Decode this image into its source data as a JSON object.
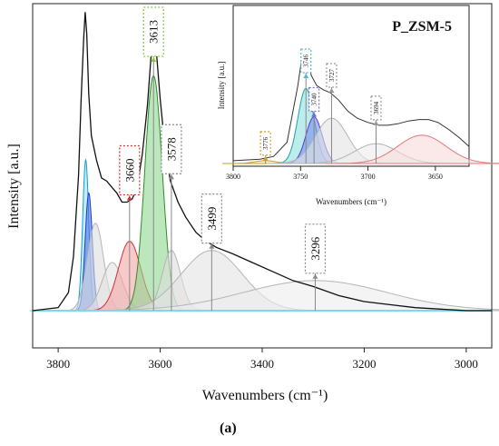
{
  "caption": "(a)",
  "main": {
    "type": "line",
    "xlabel": "Wavenumbers (cm⁻¹)",
    "ylabel": "Intensity [a.u.]",
    "xlim": [
      3850,
      2950
    ],
    "x_reversed": true,
    "xticks": [
      3800,
      3600,
      3400,
      3200,
      3000
    ],
    "grid": false,
    "baseline_color": "#7fd8ea",
    "spectrum": {
      "color": "#111111",
      "points": [
        [
          3850,
          0.0
        ],
        [
          3800,
          0.01
        ],
        [
          3780,
          0.06
        ],
        [
          3770,
          0.18
        ],
        [
          3760,
          0.45
        ],
        [
          3755,
          0.7
        ],
        [
          3750,
          0.9
        ],
        [
          3747,
          0.99
        ],
        [
          3744,
          0.92
        ],
        [
          3740,
          0.72
        ],
        [
          3735,
          0.58
        ],
        [
          3725,
          0.5
        ],
        [
          3715,
          0.44
        ],
        [
          3705,
          0.43
        ],
        [
          3695,
          0.41
        ],
        [
          3685,
          0.39
        ],
        [
          3675,
          0.36
        ],
        [
          3665,
          0.36
        ],
        [
          3655,
          0.37
        ],
        [
          3645,
          0.41
        ],
        [
          3635,
          0.52
        ],
        [
          3625,
          0.68
        ],
        [
          3618,
          0.84
        ],
        [
          3613,
          0.91
        ],
        [
          3607,
          0.85
        ],
        [
          3600,
          0.7
        ],
        [
          3590,
          0.53
        ],
        [
          3580,
          0.43
        ],
        [
          3565,
          0.36
        ],
        [
          3550,
          0.31
        ],
        [
          3530,
          0.26
        ],
        [
          3510,
          0.23
        ],
        [
          3490,
          0.21
        ],
        [
          3460,
          0.19
        ],
        [
          3420,
          0.16
        ],
        [
          3380,
          0.13
        ],
        [
          3340,
          0.1
        ],
        [
          3300,
          0.08
        ],
        [
          3250,
          0.05
        ],
        [
          3200,
          0.03
        ],
        [
          3150,
          0.02
        ],
        [
          3100,
          0.01
        ],
        [
          3000,
          0.0
        ],
        [
          2950,
          0.0
        ]
      ]
    },
    "components": [
      {
        "center": 3746,
        "height": 0.5,
        "width": 6,
        "stroke": "#1a9bd6",
        "fill": "#9adff0"
      },
      {
        "center": 3740,
        "height": 0.39,
        "width": 7,
        "stroke": "#1b3cc8",
        "fill": "#4d74e8"
      },
      {
        "center": 3727,
        "height": 0.29,
        "width": 16,
        "stroke": "#b5b5b5",
        "fill": "#dddddd"
      },
      {
        "center": 3694,
        "height": 0.16,
        "width": 20,
        "stroke": "#b5b5b5",
        "fill": "#e3e3e3"
      },
      {
        "center": 3660,
        "height": 0.23,
        "width": 22,
        "stroke": "#cc3333",
        "fill": "#f3a5a5"
      },
      {
        "center": 3613,
        "height": 0.78,
        "width": 17,
        "stroke": "#2e8b2e",
        "fill": "#8fd68f"
      },
      {
        "center": 3578,
        "height": 0.2,
        "width": 18,
        "stroke": "#b5b5b5",
        "fill": "#dddddd"
      },
      {
        "center": 3499,
        "height": 0.2,
        "width": 60,
        "stroke": "#b5b5b5",
        "fill": "#e3e3e3"
      },
      {
        "center": 3296,
        "height": 0.1,
        "width": 140,
        "stroke": "#b5b5b5",
        "fill": "#ececec"
      }
    ],
    "peak_labels": [
      {
        "text": "3613",
        "x": 3613,
        "y": 0.91,
        "box_color": "#8cc63f"
      },
      {
        "text": "3660",
        "x": 3660,
        "y": 0.36,
        "box_color": "#c0392b"
      },
      {
        "text": "3578",
        "x": 3578,
        "y": 0.43,
        "box_color": "#888888"
      },
      {
        "text": "3499",
        "x": 3499,
        "y": 0.2,
        "box_color": "#888888"
      },
      {
        "text": "3296",
        "x": 3296,
        "y": 0.1,
        "box_color": "#888888"
      }
    ]
  },
  "inset": {
    "type": "line",
    "title": "P_ZSM-5",
    "xlabel": "Wavenumbers (cm⁻¹)",
    "ylabel": "Intensity [a.u.]",
    "xlim": [
      3800,
      3625
    ],
    "x_reversed": true,
    "xticks": [
      3800,
      3750,
      3700,
      3650
    ],
    "spectrum": {
      "color": "#333333",
      "points": [
        [
          3800,
          0.02
        ],
        [
          3780,
          0.03
        ],
        [
          3770,
          0.05
        ],
        [
          3760,
          0.15
        ],
        [
          3752,
          0.55
        ],
        [
          3749,
          0.75
        ],
        [
          3747,
          0.78
        ],
        [
          3745,
          0.74
        ],
        [
          3742,
          0.62
        ],
        [
          3738,
          0.55
        ],
        [
          3733,
          0.52
        ],
        [
          3728,
          0.5
        ],
        [
          3722,
          0.45
        ],
        [
          3715,
          0.37
        ],
        [
          3708,
          0.32
        ],
        [
          3700,
          0.29
        ],
        [
          3692,
          0.27
        ],
        [
          3685,
          0.27
        ],
        [
          3678,
          0.28
        ],
        [
          3670,
          0.3
        ],
        [
          3662,
          0.31
        ],
        [
          3655,
          0.31
        ],
        [
          3648,
          0.29
        ],
        [
          3640,
          0.24
        ],
        [
          3632,
          0.18
        ],
        [
          3625,
          0.12
        ]
      ]
    },
    "components": [
      {
        "center": 3776,
        "height": 0.02,
        "width": 8,
        "stroke": "#c9a227",
        "fill": "#f3e6a6"
      },
      {
        "center": 3746,
        "height": 0.53,
        "width": 6,
        "stroke": "#1ea3a3",
        "fill": "#8fe0e0"
      },
      {
        "center": 3740,
        "height": 0.33,
        "width": 6,
        "stroke": "#5a3cc8",
        "fill": "#7a8df0"
      },
      {
        "center": 3727,
        "height": 0.32,
        "width": 12,
        "stroke": "#b5b5b5",
        "fill": "#e3e3e3"
      },
      {
        "center": 3694,
        "height": 0.14,
        "width": 16,
        "stroke": "#b5b5b5",
        "fill": "#ececec"
      },
      {
        "center": 3660,
        "height": 0.2,
        "width": 18,
        "stroke": "#e07a7a",
        "fill": "#f8d8d8"
      }
    ],
    "peak_labels": [
      {
        "text": "3776",
        "x": 3776,
        "y": 0.02,
        "box_color": "#c9a227"
      },
      {
        "text": "3746",
        "x": 3746,
        "y": 0.78,
        "box_color": "#5ab4d6"
      },
      {
        "text": "3740",
        "x": 3740,
        "y": 0.33,
        "box_color": "#7a6fcc"
      },
      {
        "text": "3727",
        "x": 3727,
        "y": 0.5,
        "box_color": "#999999"
      },
      {
        "text": "3694",
        "x": 3694,
        "y": 0.27,
        "box_color": "#999999"
      }
    ]
  }
}
